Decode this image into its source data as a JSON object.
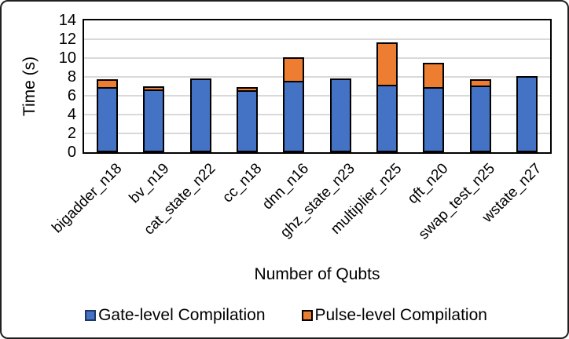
{
  "chart_data": {
    "type": "bar",
    "subtype": "stacked-vertical",
    "title": "",
    "xlabel": "Number of Qubts",
    "ylabel": "Time (s)",
    "ylim": [
      0,
      14
    ],
    "yticks": [
      0,
      2,
      4,
      6,
      8,
      10,
      12,
      14
    ],
    "grid": true,
    "legend_position": "bottom",
    "categories": [
      "bigadder_n18",
      "bv_n19",
      "cat_state_n22",
      "cc_n18",
      "dnn_n16",
      "ghz_state_n23",
      "multiplier_n25",
      "qft_n20",
      "swap_test_n25",
      "wstate_n27"
    ],
    "series": [
      {
        "name": "Gate-level Compilation",
        "color": "#4472C4",
        "values": [
          6.9,
          6.7,
          7.8,
          6.6,
          7.6,
          7.8,
          7.2,
          6.9,
          7.1,
          8.1
        ]
      },
      {
        "name": "Pulse-level Compilation",
        "color": "#ED7D31",
        "values": [
          0.8,
          0.3,
          0,
          0.3,
          2.5,
          0,
          4.5,
          2.6,
          0.65,
          0
        ]
      }
    ],
    "totals": [
      7.7,
      7.0,
      7.8,
      6.9,
      10.1,
      7.8,
      11.7,
      9.5,
      7.75,
      8.1
    ],
    "bar_border_color": "#000000",
    "gridline_color": "#D9D9D9"
  }
}
